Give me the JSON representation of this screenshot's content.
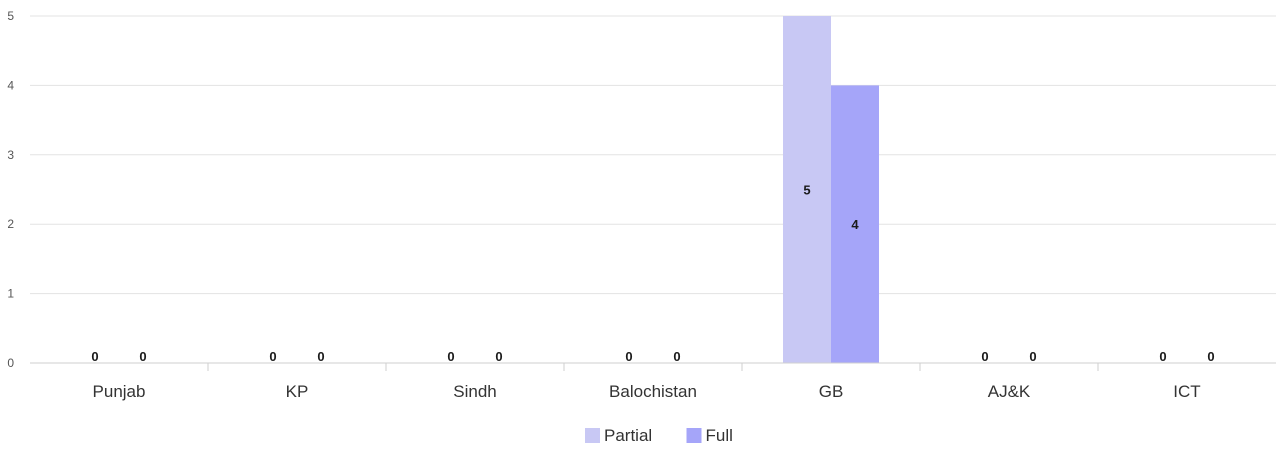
{
  "chart_data": {
    "type": "bar",
    "categories": [
      "Punjab",
      "KP",
      "Sindh",
      "Balochistan",
      "GB",
      "AJ&K",
      "ICT"
    ],
    "series": [
      {
        "name": "Partial",
        "values": [
          0,
          0,
          0,
          0,
          5,
          0,
          0
        ],
        "color": "#c8c8f4"
      },
      {
        "name": "Full",
        "values": [
          0,
          0,
          0,
          0,
          4,
          0,
          0
        ],
        "color": "#a5a5f9"
      }
    ],
    "ylim": [
      0,
      5
    ],
    "yticks": [
      0,
      1,
      2,
      3,
      4,
      5
    ],
    "grid": true,
    "legend": "bottom-center",
    "data_labels": true
  }
}
